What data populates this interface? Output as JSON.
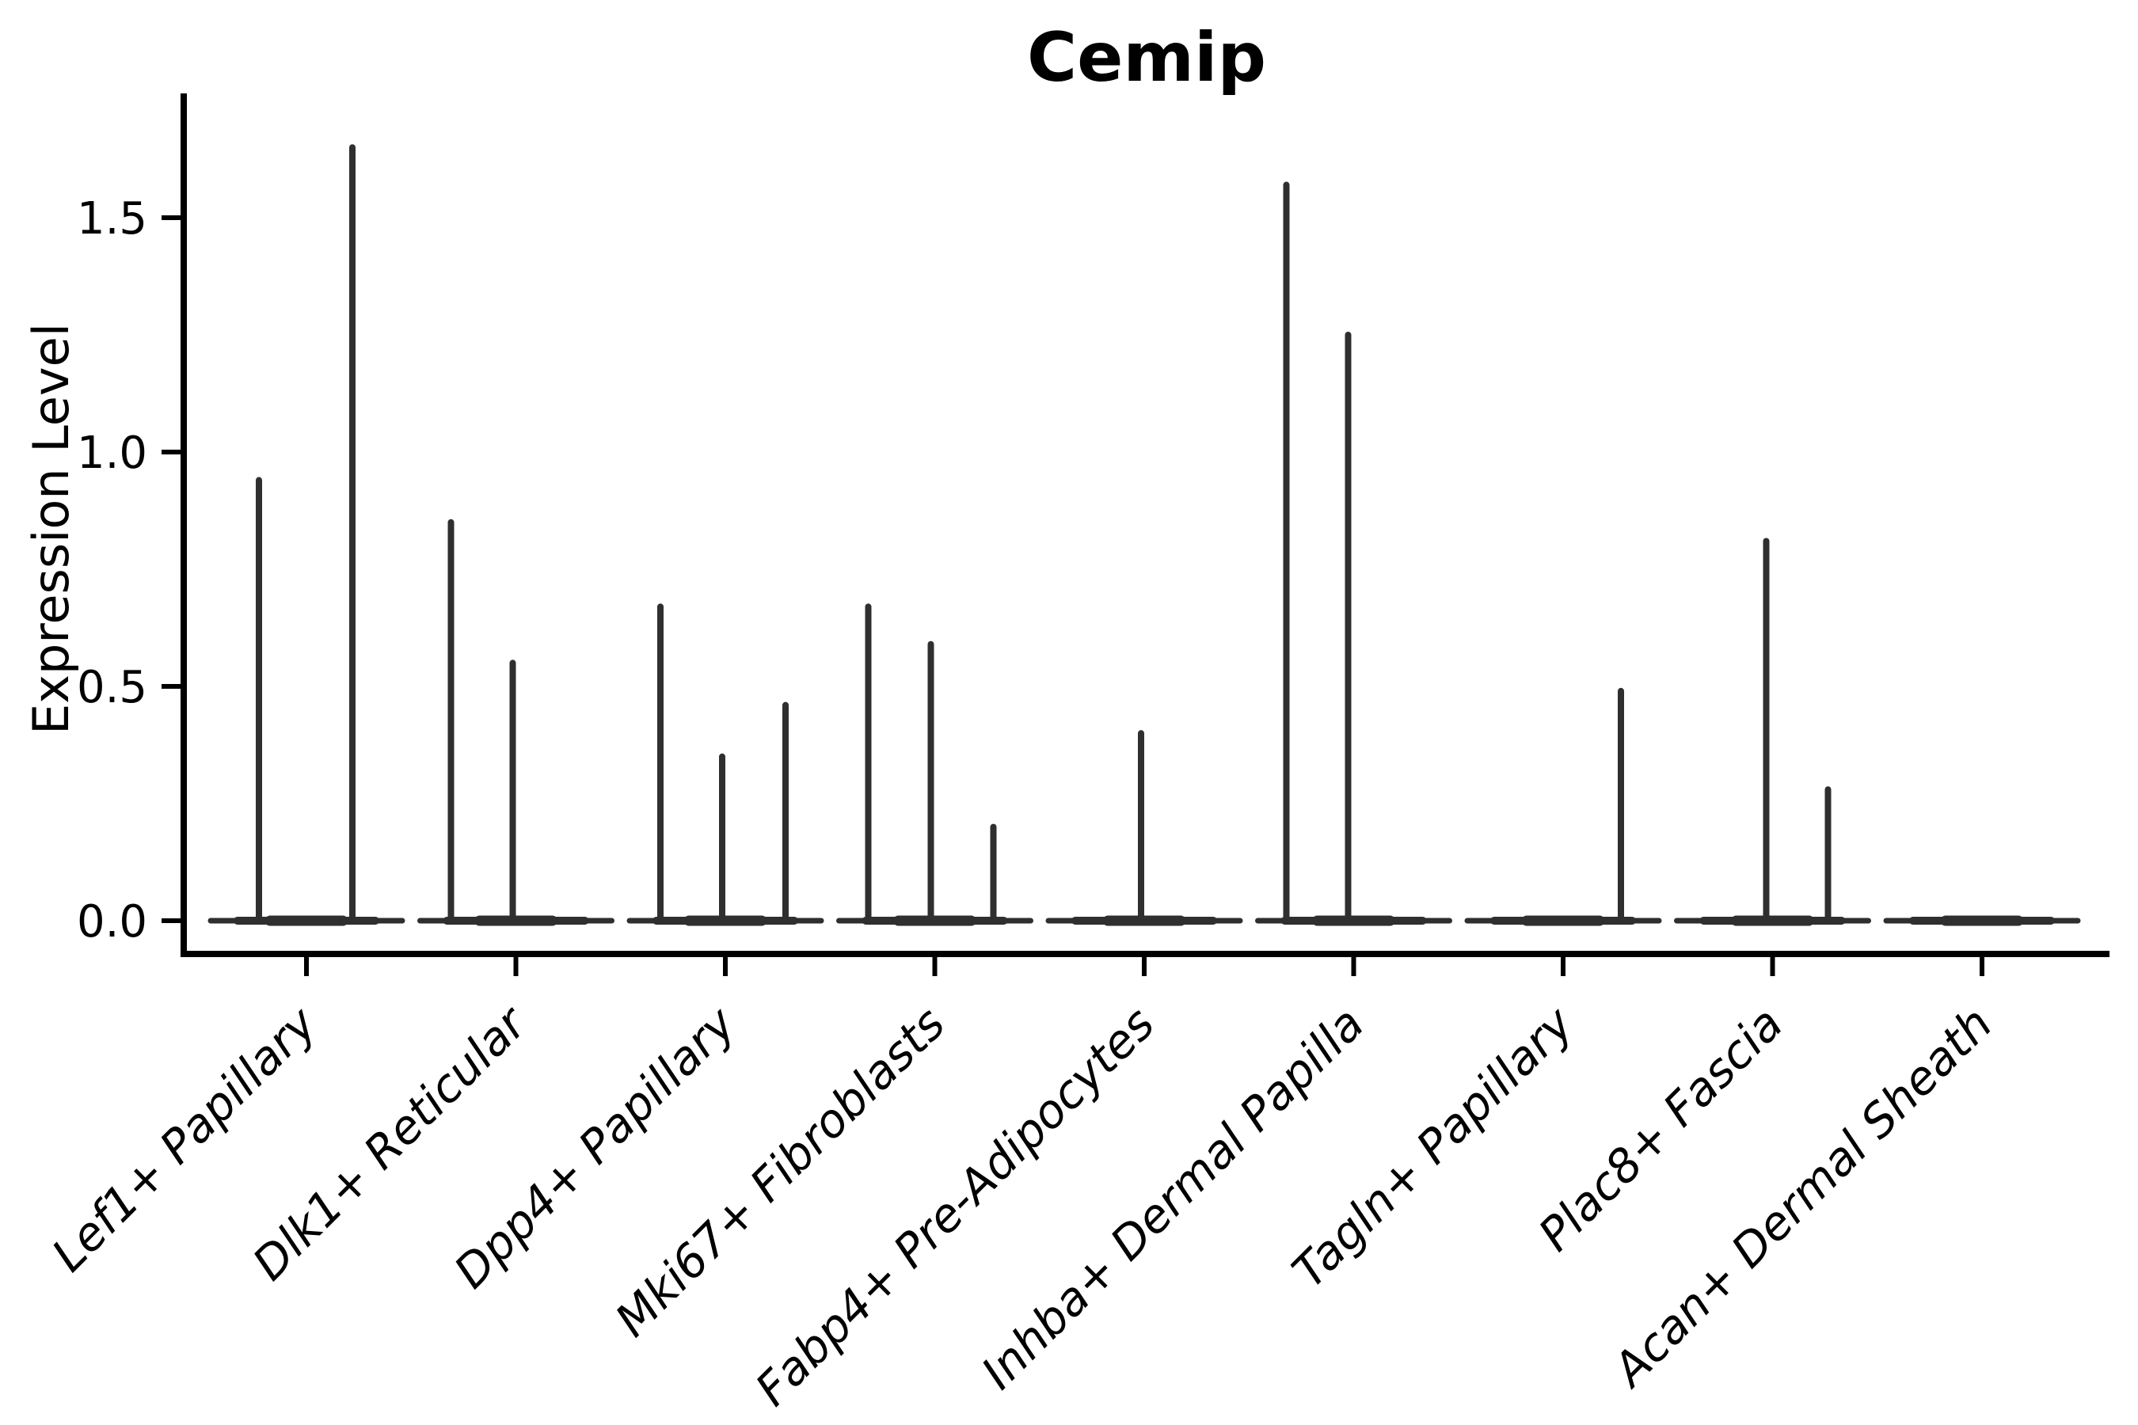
{
  "title": "Cemip",
  "ylabel": "Expression Level",
  "chart_data": {
    "type": "violin",
    "title": "Cemip",
    "xlabel": "",
    "ylabel": "Expression Level",
    "y_ticks": [
      0.0,
      0.5,
      1.0,
      1.5
    ],
    "ylim": [
      -0.07,
      1.76
    ],
    "grid": false,
    "legend": "none",
    "violin_color": "#2f2f2f",
    "axis_color": "#000000",
    "description": "Each category shows thin violin spikes rising from a flat baseline at expression 0; spike value = maximum expression level reached, offset = horizontal position of the sub-violin within the category group (px from category center).",
    "categories": [
      {
        "label": "Lef1+ Papillary",
        "baseline": 0.0,
        "spikes": [
          {
            "offset": -60,
            "value": 0.94
          },
          {
            "offset": 58,
            "value": 1.65
          }
        ]
      },
      {
        "label": "Dlk1+ Reticular",
        "baseline": 0.0,
        "spikes": [
          {
            "offset": -82,
            "value": 0.85
          },
          {
            "offset": -4,
            "value": 0.55
          }
        ]
      },
      {
        "label": "Dpp4+ Papillary",
        "baseline": 0.0,
        "spikes": [
          {
            "offset": -82,
            "value": 0.67
          },
          {
            "offset": -4,
            "value": 0.35
          },
          {
            "offset": 76,
            "value": 0.46
          }
        ]
      },
      {
        "label": "Mki67+ Fibroblasts",
        "baseline": 0.0,
        "spikes": [
          {
            "offset": -84,
            "value": 0.67
          },
          {
            "offset": -5,
            "value": 0.59
          },
          {
            "offset": 74,
            "value": 0.2
          }
        ]
      },
      {
        "label": "Fabp4+ Pre-Adipocytes",
        "baseline": 0.0,
        "spikes": [
          {
            "offset": -4,
            "value": 0.4
          }
        ]
      },
      {
        "label": "Inhba+ Dermal Papilla",
        "baseline": 0.0,
        "spikes": [
          {
            "offset": -85,
            "value": 1.57
          },
          {
            "offset": -7,
            "value": 1.25
          }
        ]
      },
      {
        "label": "Tagln+ Papillary",
        "baseline": 0.0,
        "spikes": [
          {
            "offset": 73,
            "value": 0.49
          }
        ]
      },
      {
        "label": "Plac8+ Fascia",
        "baseline": 0.0,
        "spikes": [
          {
            "offset": -8,
            "value": 0.81
          },
          {
            "offset": 70,
            "value": 0.28
          }
        ]
      },
      {
        "label": "Acan+ Dermal Sheath",
        "baseline": 0.0,
        "spikes": []
      }
    ]
  }
}
